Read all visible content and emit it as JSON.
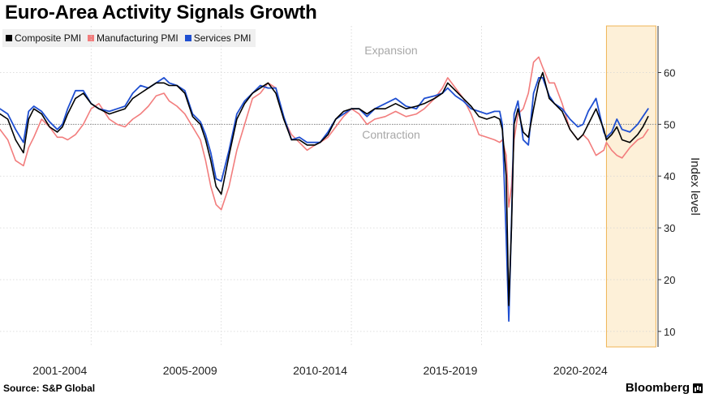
{
  "title": "Euro-Area Activity Signals Growth",
  "legend": [
    {
      "label": "Composite PMI",
      "color": "#000000"
    },
    {
      "label": "Manufacturing PMI",
      "color": "#f27d7d"
    },
    {
      "label": "Services PMI",
      "color": "#1f4fd1"
    }
  ],
  "footer": {
    "source": "Source: S&P Global",
    "brand": "Bloomberg"
  },
  "chart_data": {
    "type": "line",
    "title": "Euro-Area Activity Signals Growth",
    "ylabel": "Index level",
    "ylim": [
      7,
      69
    ],
    "yticks": [
      10,
      20,
      30,
      40,
      50,
      60
    ],
    "xlim": [
      2000.7,
      2025.95
    ],
    "reference_line": 50,
    "shaded_region": [
      2024.0,
      2025.9
    ],
    "annotations": [
      "Expansion",
      "Contraction"
    ],
    "x_labels": [
      {
        "label": "2001-2004",
        "center": 2003.0
      },
      {
        "label": "2005-2009",
        "center": 2008.0
      },
      {
        "label": "2010-2014",
        "center": 2013.0
      },
      {
        "label": "2015-2019",
        "center": 2018.0
      },
      {
        "label": "2020-2024",
        "center": 2023.0
      }
    ],
    "x_separators": [
      2004.2,
      2009.2,
      2014.2,
      2019.2
    ],
    "series": [
      {
        "name": "Composite PMI",
        "color": "#000000",
        "x": [
          2000.7,
          2001.0,
          2001.3,
          2001.6,
          2001.8,
          2002.0,
          2002.3,
          2002.6,
          2002.9,
          2003.1,
          2003.3,
          2003.6,
          2003.9,
          2004.2,
          2004.5,
          2004.9,
          2005.2,
          2005.5,
          2005.8,
          2006.1,
          2006.4,
          2006.7,
          2007.0,
          2007.2,
          2007.5,
          2007.8,
          2008.1,
          2008.4,
          2008.6,
          2008.8,
          2009.0,
          2009.2,
          2009.5,
          2009.8,
          2010.1,
          2010.4,
          2010.7,
          2011.0,
          2011.3,
          2011.6,
          2011.9,
          2012.2,
          2012.5,
          2012.8,
          2013.0,
          2013.3,
          2013.6,
          2013.9,
          2014.2,
          2014.5,
          2014.8,
          2015.1,
          2015.5,
          2015.9,
          2016.3,
          2016.7,
          2017.0,
          2017.4,
          2017.7,
          2017.9,
          2018.2,
          2018.5,
          2018.8,
          2019.1,
          2019.4,
          2019.7,
          2019.9,
          2020.0,
          2020.15,
          2020.25,
          2020.35,
          2020.45,
          2020.6,
          2020.8,
          2021.0,
          2021.2,
          2021.4,
          2021.55,
          2021.8,
          2022.0,
          2022.3,
          2022.6,
          2022.9,
          2023.1,
          2023.3,
          2023.6,
          2023.9,
          2024.0,
          2024.2,
          2024.4,
          2024.6,
          2024.9,
          2025.2,
          2025.4,
          2025.6
        ],
        "y": [
          52,
          51,
          47,
          44.5,
          51,
          53,
          52,
          49.5,
          48.5,
          49.5,
          52,
          55,
          56,
          54,
          53,
          52,
          52.5,
          53,
          55,
          56,
          57,
          58,
          58,
          57.5,
          57.5,
          56,
          51.5,
          50,
          47,
          43,
          38,
          36.5,
          44,
          51,
          54,
          56,
          57,
          58,
          56,
          51,
          47,
          47,
          46,
          46,
          46.5,
          48,
          51,
          52.5,
          53,
          53,
          52,
          53,
          53,
          54,
          53,
          53.5,
          54,
          55,
          56,
          58,
          56.5,
          55,
          53.5,
          51.5,
          51,
          51.5,
          51,
          49,
          40,
          15,
          30,
          50,
          53,
          48.5,
          47.5,
          53,
          58,
          60,
          55,
          54,
          52.5,
          49,
          47,
          48,
          50,
          53,
          49,
          47,
          48,
          49.5,
          47,
          46.5,
          48,
          49.5,
          51.5
        ]
      },
      {
        "name": "Manufacturing PMI",
        "color": "#f27d7d",
        "x": [
          2000.7,
          2001.0,
          2001.3,
          2001.6,
          2001.8,
          2002.0,
          2002.3,
          2002.6,
          2002.9,
          2003.1,
          2003.3,
          2003.6,
          2003.9,
          2004.2,
          2004.5,
          2004.9,
          2005.2,
          2005.5,
          2005.8,
          2006.1,
          2006.4,
          2006.7,
          2007.0,
          2007.2,
          2007.5,
          2007.8,
          2008.1,
          2008.4,
          2008.6,
          2008.8,
          2009.0,
          2009.2,
          2009.5,
          2009.8,
          2010.1,
          2010.4,
          2010.7,
          2011.0,
          2011.3,
          2011.6,
          2011.9,
          2012.2,
          2012.5,
          2012.8,
          2013.0,
          2013.3,
          2013.6,
          2013.9,
          2014.2,
          2014.5,
          2014.8,
          2015.1,
          2015.5,
          2015.9,
          2016.3,
          2016.7,
          2017.0,
          2017.4,
          2017.7,
          2017.9,
          2018.2,
          2018.5,
          2018.8,
          2019.1,
          2019.4,
          2019.7,
          2019.9,
          2020.0,
          2020.15,
          2020.25,
          2020.35,
          2020.45,
          2020.6,
          2020.8,
          2021.0,
          2021.2,
          2021.4,
          2021.55,
          2021.8,
          2022.0,
          2022.3,
          2022.6,
          2022.9,
          2023.1,
          2023.3,
          2023.6,
          2023.9,
          2024.0,
          2024.2,
          2024.4,
          2024.6,
          2024.9,
          2025.2,
          2025.4,
          2025.6
        ],
        "y": [
          49,
          47,
          43,
          42,
          45.5,
          47.5,
          51,
          49.5,
          47.5,
          47.5,
          47,
          48,
          50,
          53,
          54,
          51,
          50,
          49.5,
          51,
          52,
          53.5,
          55.5,
          56,
          54.5,
          53.5,
          52,
          49.5,
          47,
          43,
          38,
          34.5,
          33.5,
          38,
          45,
          50,
          55,
          56,
          58,
          57,
          51,
          48,
          46.5,
          45,
          46,
          46.5,
          47.5,
          49.5,
          51.5,
          53,
          52,
          50,
          51,
          51.5,
          52.5,
          51.5,
          52,
          53,
          55,
          57,
          59,
          57,
          55,
          52,
          48,
          47.5,
          47,
          46.5,
          47,
          44,
          34,
          38,
          47,
          52,
          53,
          56,
          62,
          63,
          61,
          58,
          58,
          54,
          49,
          47,
          48,
          47,
          44,
          45,
          46.5,
          45,
          44,
          43.5,
          45.5,
          47,
          47.5,
          49
        ]
      },
      {
        "name": "Services PMI",
        "color": "#1f4fd1",
        "x": [
          2000.7,
          2001.0,
          2001.3,
          2001.6,
          2001.8,
          2002.0,
          2002.3,
          2002.6,
          2002.9,
          2003.1,
          2003.3,
          2003.6,
          2003.9,
          2004.2,
          2004.5,
          2004.9,
          2005.2,
          2005.5,
          2005.8,
          2006.1,
          2006.4,
          2006.7,
          2007.0,
          2007.2,
          2007.5,
          2007.8,
          2008.1,
          2008.4,
          2008.6,
          2008.8,
          2009.0,
          2009.2,
          2009.5,
          2009.8,
          2010.1,
          2010.4,
          2010.7,
          2011.0,
          2011.3,
          2011.6,
          2011.9,
          2012.2,
          2012.5,
          2012.8,
          2013.0,
          2013.3,
          2013.6,
          2013.9,
          2014.2,
          2014.5,
          2014.8,
          2015.1,
          2015.5,
          2015.9,
          2016.3,
          2016.7,
          2017.0,
          2017.4,
          2017.7,
          2017.9,
          2018.2,
          2018.5,
          2018.8,
          2019.1,
          2019.4,
          2019.7,
          2019.9,
          2020.0,
          2020.15,
          2020.25,
          2020.35,
          2020.45,
          2020.6,
          2020.8,
          2021.0,
          2021.2,
          2021.4,
          2021.55,
          2021.8,
          2022.0,
          2022.3,
          2022.6,
          2022.9,
          2023.1,
          2023.3,
          2023.6,
          2023.9,
          2024.0,
          2024.2,
          2024.4,
          2024.6,
          2024.9,
          2025.2,
          2025.4,
          2025.6
        ],
        "y": [
          53,
          52,
          49,
          46.5,
          52.5,
          53.5,
          52.5,
          50.5,
          49,
          50,
          53,
          56.5,
          56.5,
          54,
          53,
          52.5,
          53,
          53.5,
          56,
          57.5,
          57,
          58,
          59,
          58,
          57.5,
          56.5,
          52,
          50.5,
          48,
          44.5,
          39.5,
          39,
          45,
          52,
          54.5,
          56,
          57.5,
          57,
          57,
          51.5,
          47,
          47.5,
          46.5,
          46.5,
          46.5,
          48.5,
          51,
          52,
          53,
          53,
          51.5,
          53,
          54,
          55,
          53.5,
          53,
          55,
          55.5,
          56,
          57,
          55.5,
          54.5,
          53,
          52.5,
          52,
          52.5,
          52.5,
          50,
          28,
          12,
          31,
          52,
          54.5,
          47,
          46,
          56,
          59,
          59,
          55.5,
          54,
          53,
          51,
          49.5,
          50,
          52.5,
          55,
          48.5,
          47.5,
          48.5,
          51,
          49,
          48.5,
          50,
          51.5,
          53
        ]
      }
    ]
  }
}
